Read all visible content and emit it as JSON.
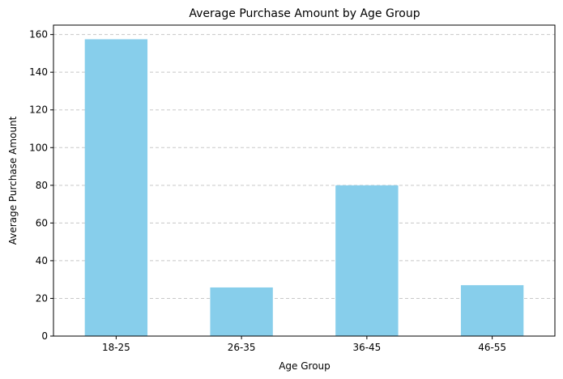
{
  "chart_data": {
    "type": "bar",
    "title": "Average Purchase Amount by Age Group",
    "xlabel": "Age Group",
    "ylabel": "Average Purchase Amount",
    "categories": [
      "18-25",
      "26-35",
      "36-45",
      "46-55"
    ],
    "values": [
      157.5,
      25.8,
      80.0,
      27.0
    ],
    "ylim": [
      0,
      165
    ],
    "yticks": [
      0,
      20,
      40,
      60,
      80,
      100,
      120,
      140,
      160
    ],
    "bar_color": "#87CEEB",
    "grid": "y-dashed",
    "legend": "none"
  }
}
